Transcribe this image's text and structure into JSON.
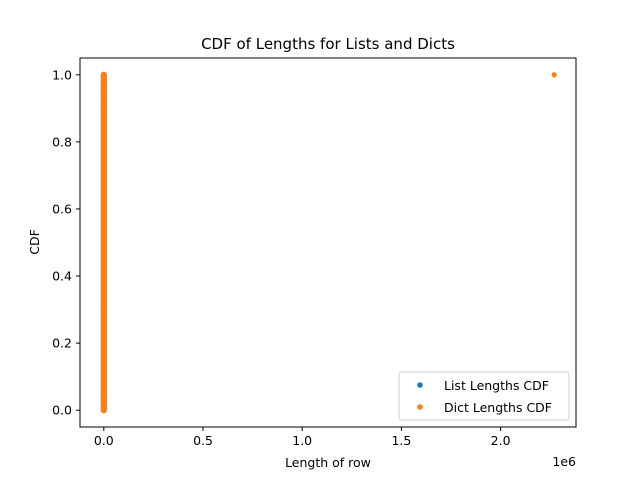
{
  "chart_data": {
    "type": "scatter",
    "title": "CDF of Lengths for Lists and Dicts",
    "xlabel": "Length of row",
    "ylabel": "CDF",
    "x_offset_text": "1e6",
    "xlim": [
      -120000,
      2380000
    ],
    "ylim": [
      -0.05,
      1.05
    ],
    "x_ticks": [
      0,
      500000,
      1000000,
      1500000,
      2000000
    ],
    "x_tick_labels": [
      "0.0",
      "0.5",
      "1.0",
      "1.5",
      "2.0"
    ],
    "y_ticks": [
      0.0,
      0.2,
      0.4,
      0.6,
      0.8,
      1.0
    ],
    "y_tick_labels": [
      "0.0",
      "0.2",
      "0.4",
      "0.6",
      "0.8",
      "1.0"
    ],
    "legend_position": "lower-right",
    "series": [
      {
        "name": "List Lengths CDF",
        "color": "#1f77b4",
        "x": [
          0,
          0,
          0,
          0,
          0,
          0,
          0,
          0,
          0,
          0,
          0
        ],
        "y": [
          0.0,
          0.1,
          0.2,
          0.3,
          0.4,
          0.5,
          0.6,
          0.7,
          0.8,
          0.9,
          1.0
        ]
      },
      {
        "name": "Dict Lengths CDF",
        "color": "#ff7f0e",
        "x": [
          0,
          0,
          0,
          0,
          0,
          0,
          0,
          0,
          0,
          0,
          0,
          0,
          0,
          0,
          0,
          0,
          0,
          0,
          0,
          0,
          0,
          2270000
        ],
        "y": [
          0.0,
          0.05,
          0.1,
          0.15,
          0.2,
          0.25,
          0.3,
          0.35,
          0.4,
          0.45,
          0.5,
          0.55,
          0.6,
          0.65,
          0.7,
          0.75,
          0.8,
          0.85,
          0.9,
          0.95,
          1.0,
          1.0
        ]
      }
    ]
  }
}
